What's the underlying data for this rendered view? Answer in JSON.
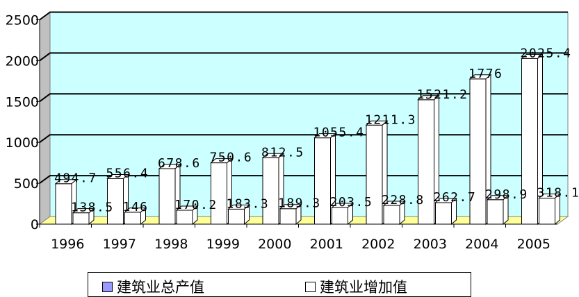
{
  "chart_data": {
    "type": "bar",
    "title": "",
    "xlabel": "",
    "ylabel": "",
    "ylim": [
      0,
      2500
    ],
    "yticks": [
      0,
      500,
      1000,
      1500,
      2000,
      2500
    ],
    "grid": true,
    "legend_position": "bottom",
    "categories": [
      "1996",
      "1997",
      "1998",
      "1999",
      "2000",
      "2001",
      "2002",
      "2003",
      "2004",
      "2005"
    ],
    "series": [
      {
        "name": "建筑业总产值",
        "color": "#9999ff",
        "values": [
          494.7,
          556.4,
          678.6,
          750.6,
          812.5,
          1055.4,
          1211.3,
          1521.2,
          1776,
          2025.4
        ],
        "labels": [
          "494.7",
          "556.4",
          "678.6",
          "750.6",
          "812.5",
          "1055.4",
          "1211.3",
          "1521.2",
          "1776",
          "2025.4"
        ]
      },
      {
        "name": "建筑业增加值",
        "color": "#ffffff",
        "values": [
          138.5,
          146,
          170.2,
          183.3,
          189.3,
          203.5,
          228.8,
          262.7,
          298.9,
          318.1
        ],
        "labels": [
          "138.5",
          "146",
          "170.2",
          "183.3",
          "189.3",
          "203.5",
          "228.8",
          "262.7",
          "298.9",
          "318.1"
        ]
      }
    ],
    "colors": {
      "plot_background": "#ccffff",
      "floor": "#ffff99",
      "gridline": "#000000"
    }
  },
  "legend": {
    "items": [
      "建筑业总产值",
      "建筑业增加值"
    ],
    "swatch_colors": [
      "#9999ff",
      "#ffffff"
    ]
  }
}
